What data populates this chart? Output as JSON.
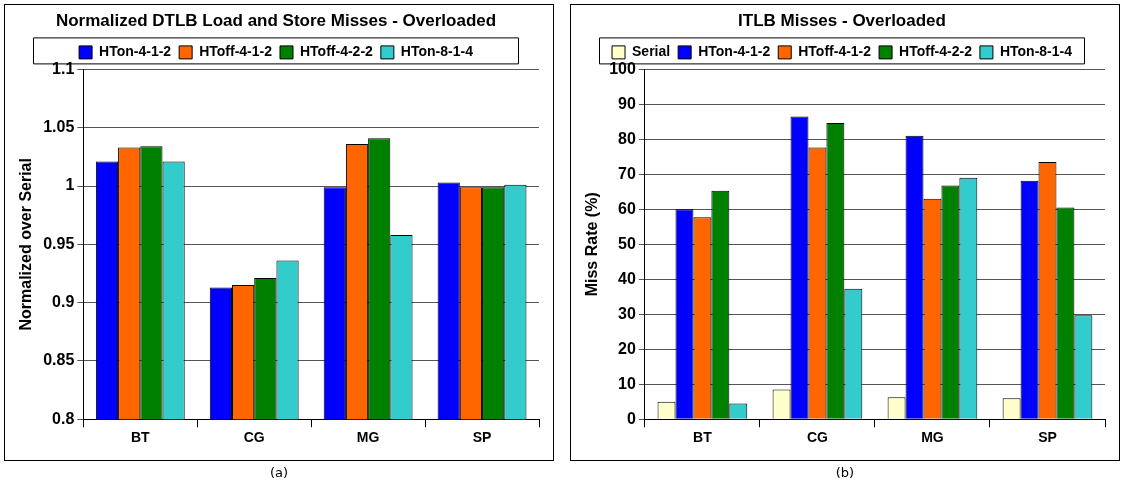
{
  "chart_data": [
    {
      "type": "bar",
      "title": "Normalized DTLB Load and Store Misses - Overloaded",
      "ylabel": "Normalized over Serial",
      "categories": [
        "BT",
        "CG",
        "MG",
        "SP"
      ],
      "series": [
        {
          "name": "HTon-4-1-2",
          "color": "#0000ff",
          "values": [
            1.021,
            0.913,
            0.999,
            1.003
          ]
        },
        {
          "name": "HToff-4-1-2",
          "color": "#ff6600",
          "values": [
            1.033,
            0.915,
            1.036,
            0.999
          ]
        },
        {
          "name": "HToff-4-2-2",
          "color": "#008000",
          "values": [
            1.034,
            0.921,
            1.041,
            0.999
          ]
        },
        {
          "name": "HTon-8-1-4",
          "color": "#33cccc",
          "values": [
            1.021,
            0.936,
            0.958,
            1.001
          ]
        }
      ],
      "ylim": [
        0.8,
        1.1
      ],
      "yticks": [
        0.8,
        0.85,
        0.9,
        0.95,
        1,
        1.05,
        1.1
      ],
      "grid": "y",
      "legend": "top",
      "annotations": [
        "(a)"
      ]
    },
    {
      "type": "bar",
      "title": "ITLB Misses - Overloaded",
      "ylabel": "Miss Rate (%)",
      "categories": [
        "BT",
        "CG",
        "MG",
        "SP"
      ],
      "series": [
        {
          "name": "Serial",
          "color": "#ffffcc",
          "values": [
            5,
            8.5,
            6.3,
            6
          ]
        },
        {
          "name": "HTon-4-1-2",
          "color": "#0000ff",
          "values": [
            60,
            86.5,
            81,
            68.2
          ]
        },
        {
          "name": "HToff-4-1-2",
          "color": "#ff6600",
          "values": [
            57.7,
            77.7,
            63,
            73.5
          ]
        },
        {
          "name": "HToff-4-2-2",
          "color": "#008000",
          "values": [
            65.3,
            84.7,
            66.8,
            60.5
          ]
        },
        {
          "name": "HTon-8-1-4",
          "color": "#33cccc",
          "values": [
            4.5,
            37.3,
            69,
            29.7
          ]
        }
      ],
      "ylim": [
        0,
        100
      ],
      "yticks": [
        0,
        10,
        20,
        30,
        40,
        50,
        60,
        70,
        80,
        90,
        100
      ],
      "grid": "y",
      "legend": "top",
      "annotations": [
        "(b)"
      ]
    }
  ]
}
